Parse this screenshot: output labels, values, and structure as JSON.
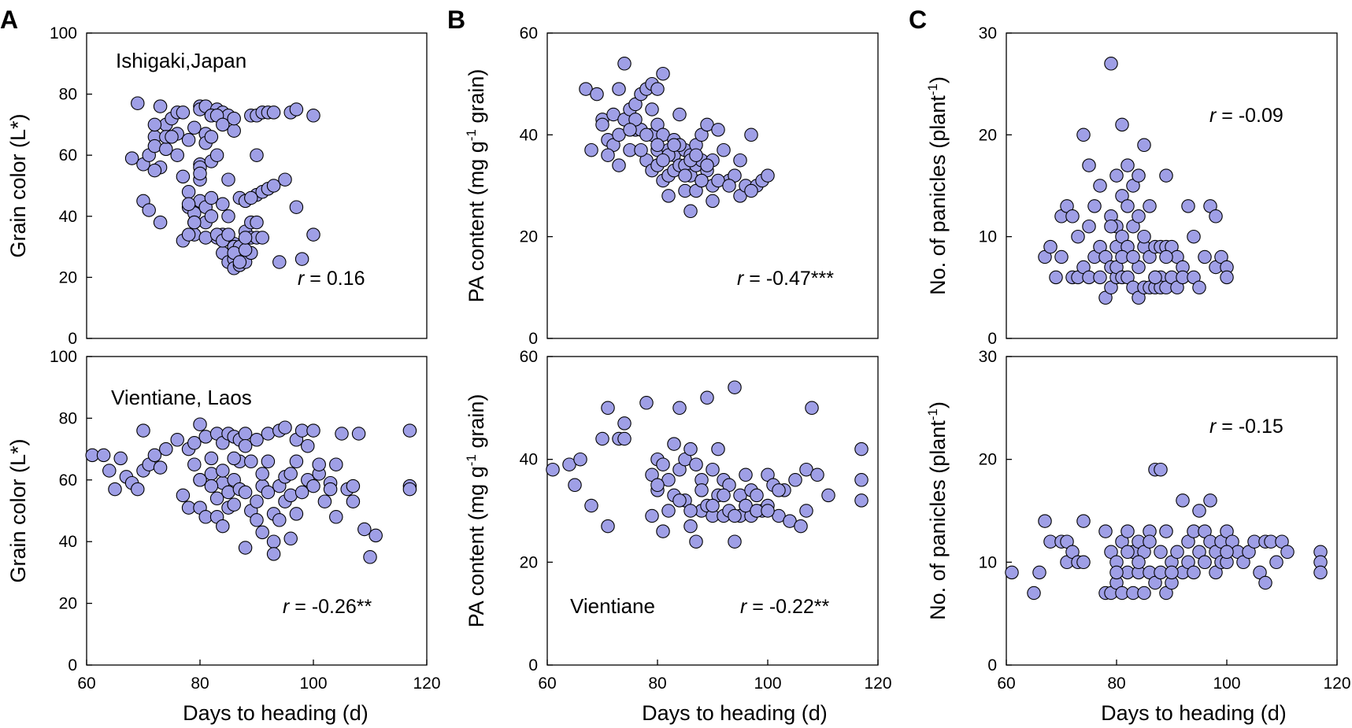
{
  "panel_letters": [
    "A",
    "B",
    "C"
  ],
  "x_axis_label": "Days to heading (d)",
  "colors": {
    "marker_fill": "#9f9fe6",
    "marker_edge": "#000000"
  },
  "chart_data": [
    {
      "type": "scatter",
      "id": "A-top",
      "panel": "A",
      "title": "",
      "annotation": "Ishigaki,Japan",
      "r_label": "r",
      "r_value": " = 0.16",
      "xlabel": "",
      "ylabel": "Grain color (L*)",
      "xlim": [
        60,
        120
      ],
      "ylim": [
        0,
        100
      ],
      "xticks": [],
      "yticks": [
        0,
        20,
        40,
        60,
        80,
        100
      ],
      "x": [
        68,
        69,
        70,
        71,
        72,
        72,
        73,
        73,
        74,
        74,
        75,
        76,
        76,
        77,
        77,
        78,
        78,
        79,
        79,
        79,
        79,
        80,
        80,
        80,
        80,
        80,
        81,
        81,
        81,
        81,
        81,
        82,
        82,
        82,
        82,
        83,
        83,
        83,
        84,
        84,
        84,
        84,
        85,
        85,
        85,
        85,
        86,
        86,
        86,
        86,
        86,
        87,
        87,
        87,
        87,
        88,
        88,
        88,
        88,
        89,
        89,
        89,
        89,
        90,
        90,
        90,
        90,
        91,
        91,
        91,
        92,
        92,
        93,
        93,
        94,
        95,
        96,
        97,
        97,
        98,
        100,
        100,
        70,
        71,
        72,
        73,
        74,
        76,
        77,
        78,
        78,
        79,
        80,
        81,
        82,
        83,
        83,
        84,
        85,
        86,
        87,
        88,
        89,
        90,
        72,
        75,
        78,
        80,
        82,
        84,
        86,
        88
      ],
      "y": [
        59,
        77,
        57,
        60,
        66,
        63,
        76,
        56,
        70,
        62,
        72,
        67,
        74,
        74,
        53,
        48,
        43,
        41,
        38,
        34,
        69,
        76,
        75,
        57,
        52,
        45,
        76,
        67,
        64,
        43,
        38,
        73,
        66,
        58,
        40,
        75,
        60,
        33,
        74,
        44,
        34,
        28,
        73,
        52,
        40,
        25,
        68,
        31,
        30,
        26,
        23,
        46,
        30,
        27,
        24,
        45,
        35,
        27,
        25,
        73,
        38,
        33,
        28,
        73,
        60,
        47,
        33,
        74,
        48,
        33,
        74,
        49,
        74,
        50,
        25,
        52,
        74,
        75,
        43,
        26,
        73,
        34,
        45,
        42,
        55,
        38,
        66,
        60,
        32,
        34,
        65,
        38,
        56,
        33,
        73,
        34,
        73,
        32,
        34,
        28,
        25,
        29,
        46,
        38,
        70,
        66,
        44,
        54,
        46,
        70,
        72,
        33
      ],
      "marker": "circle"
    },
    {
      "type": "scatter",
      "id": "A-bottom",
      "panel": "A",
      "title": "",
      "annotation": "Vientiane, Laos",
      "r_label": "r",
      "r_value": " = -0.26**",
      "xlabel": "Days to heading (d)",
      "ylabel": "Grain color (L*)",
      "xlim": [
        60,
        120
      ],
      "ylim": [
        0,
        100
      ],
      "xticks": [
        60,
        80,
        100,
        120
      ],
      "yticks": [
        0,
        20,
        40,
        60,
        80,
        100
      ],
      "x": [
        61,
        63,
        64,
        65,
        66,
        67,
        68,
        69,
        70,
        70,
        71,
        72,
        73,
        74,
        76,
        77,
        78,
        78,
        79,
        79,
        80,
        80,
        80,
        81,
        81,
        82,
        82,
        83,
        83,
        83,
        84,
        84,
        84,
        85,
        85,
        85,
        86,
        86,
        86,
        87,
        87,
        87,
        88,
        88,
        88,
        89,
        89,
        90,
        90,
        90,
        91,
        91,
        91,
        92,
        92,
        93,
        93,
        93,
        94,
        94,
        94,
        95,
        95,
        95,
        96,
        96,
        97,
        97,
        97,
        98,
        98,
        99,
        99,
        100,
        100,
        101,
        102,
        103,
        103,
        104,
        104,
        105,
        106,
        107,
        107,
        108,
        109,
        110,
        111,
        117,
        117,
        117,
        80,
        82,
        84,
        86,
        88,
        92,
        96,
        101
      ],
      "y": [
        68,
        68,
        63,
        57,
        67,
        61,
        59,
        57,
        63,
        76,
        65,
        68,
        64,
        70,
        73,
        55,
        51,
        70,
        72,
        65,
        78,
        60,
        51,
        74,
        48,
        67,
        62,
        75,
        54,
        48,
        72,
        59,
        45,
        75,
        56,
        51,
        74,
        60,
        52,
        73,
        66,
        57,
        38,
        75,
        56,
        50,
        66,
        53,
        47,
        73,
        58,
        43,
        62,
        75,
        56,
        40,
        36,
        49,
        76,
        58,
        47,
        77,
        61,
        53,
        55,
        41,
        73,
        49,
        66,
        76,
        56,
        71,
        60,
        76,
        58,
        62,
        53,
        59,
        57,
        65,
        48,
        75,
        57,
        53,
        58,
        75,
        44,
        35,
        42,
        76,
        58,
        57,
        60,
        58,
        63,
        67,
        71,
        66,
        62,
        65
      ],
      "marker": "circle"
    },
    {
      "type": "scatter",
      "id": "B-top",
      "panel": "B",
      "title": "",
      "annotation": "",
      "r_label": "r",
      "r_value": " = -0.47***",
      "xlabel": "",
      "ylabel": "PA content (mg g-1 grain)",
      "xlim": [
        60,
        120
      ],
      "ylim": [
        0,
        60
      ],
      "xticks": [],
      "yticks": [
        0,
        20,
        40,
        60
      ],
      "x": [
        67,
        68,
        69,
        70,
        70,
        71,
        72,
        72,
        73,
        73,
        74,
        74,
        75,
        75,
        76,
        76,
        77,
        77,
        78,
        78,
        79,
        79,
        79,
        80,
        80,
        80,
        80,
        81,
        81,
        81,
        82,
        82,
        82,
        83,
        83,
        83,
        84,
        84,
        85,
        85,
        85,
        86,
        86,
        86,
        87,
        87,
        87,
        88,
        88,
        88,
        89,
        89,
        90,
        90,
        90,
        91,
        92,
        93,
        94,
        95,
        96,
        97,
        98,
        99,
        100,
        76,
        78,
        80,
        82,
        84,
        86,
        88,
        71,
        73,
        75,
        77,
        79,
        81,
        83,
        85,
        87,
        89,
        91,
        93,
        95,
        97
      ],
      "y": [
        49,
        37,
        48,
        43,
        42,
        39,
        44,
        38,
        49,
        40,
        54,
        43,
        45,
        37,
        46,
        41,
        48,
        41,
        49,
        35,
        50,
        40,
        33,
        49,
        42,
        37,
        34,
        52,
        40,
        31,
        37,
        32,
        28,
        39,
        36,
        33,
        44,
        34,
        37,
        34,
        29,
        36,
        32,
        25,
        38,
        34,
        29,
        40,
        35,
        31,
        42,
        33,
        35,
        30,
        27,
        41,
        37,
        31,
        32,
        28,
        30,
        40,
        30,
        31,
        32,
        43,
        40,
        38,
        36,
        38,
        35,
        31,
        36,
        34,
        41,
        37,
        45,
        35,
        38,
        32,
        36,
        34,
        31,
        30,
        35,
        29
      ],
      "marker": "circle"
    },
    {
      "type": "scatter",
      "id": "B-bottom",
      "panel": "B",
      "title": "",
      "annotation": "Vientiane",
      "r_label": "r",
      "r_value": " = -0.22**",
      "xlabel": "Days to heading (d)",
      "ylabel": "PA content (mg g-1 grain)",
      "xlim": [
        60,
        120
      ],
      "ylim": [
        0,
        60
      ],
      "xticks": [
        60,
        80,
        100,
        120
      ],
      "yticks": [
        0,
        20,
        40,
        60
      ],
      "x": [
        61,
        64,
        65,
        66,
        68,
        70,
        71,
        71,
        73,
        74,
        74,
        78,
        79,
        79,
        80,
        80,
        81,
        81,
        82,
        82,
        83,
        83,
        84,
        84,
        85,
        85,
        86,
        86,
        87,
        87,
        88,
        88,
        89,
        89,
        90,
        90,
        91,
        91,
        92,
        92,
        93,
        93,
        94,
        94,
        95,
        95,
        96,
        96,
        97,
        97,
        98,
        98,
        99,
        100,
        100,
        101,
        102,
        103,
        104,
        105,
        106,
        107,
        107,
        108,
        109,
        111,
        117,
        117,
        117,
        80,
        84,
        86,
        88,
        90,
        92,
        94,
        96,
        98,
        100,
        102
      ],
      "y": [
        38,
        39,
        35,
        40,
        31,
        44,
        50,
        27,
        44,
        47,
        44,
        51,
        37,
        29,
        40,
        34,
        39,
        26,
        36,
        30,
        43,
        33,
        50,
        38,
        40,
        32,
        42,
        27,
        39,
        24,
        36,
        30,
        52,
        31,
        38,
        29,
        42,
        33,
        36,
        29,
        35,
        30,
        54,
        24,
        33,
        29,
        37,
        31,
        34,
        29,
        33,
        30,
        30,
        37,
        31,
        35,
        29,
        34,
        28,
        36,
        27,
        38,
        30,
        50,
        37,
        33,
        42,
        36,
        32,
        35,
        32,
        30,
        34,
        31,
        33,
        29,
        31,
        30,
        30,
        34
      ],
      "marker": "circle"
    },
    {
      "type": "scatter",
      "id": "C-top",
      "panel": "C",
      "title": "",
      "annotation": "",
      "r_label": "r",
      "r_value": " = -0.09",
      "xlabel": "",
      "ylabel": "No. of panicles (plant-1)",
      "xlim": [
        60,
        120
      ],
      "ylim": [
        0,
        30
      ],
      "xticks": [],
      "yticks": [
        0,
        10,
        20,
        30
      ],
      "x": [
        67,
        68,
        69,
        70,
        70,
        71,
        72,
        72,
        73,
        73,
        74,
        74,
        75,
        75,
        76,
        76,
        77,
        77,
        78,
        78,
        79,
        79,
        79,
        79,
        80,
        80,
        80,
        80,
        80,
        81,
        81,
        81,
        81,
        82,
        82,
        82,
        82,
        83,
        83,
        83,
        84,
        84,
        84,
        84,
        85,
        85,
        85,
        86,
        86,
        86,
        87,
        87,
        87,
        88,
        88,
        88,
        89,
        89,
        89,
        90,
        90,
        91,
        91,
        92,
        92,
        93,
        94,
        94,
        95,
        96,
        97,
        98,
        98,
        99,
        100,
        100,
        75,
        77,
        79,
        81,
        83,
        85,
        87,
        89
      ],
      "y": [
        8,
        9,
        6,
        12,
        8,
        13,
        12,
        6,
        10,
        6,
        20,
        7,
        17,
        6,
        13,
        8,
        15,
        9,
        4,
        8,
        27,
        12,
        7,
        5,
        16,
        11,
        9,
        6,
        7,
        21,
        14,
        10,
        6,
        17,
        13,
        9,
        6,
        15,
        11,
        5,
        16,
        12,
        7,
        4,
        19,
        9,
        5,
        13,
        8,
        5,
        9,
        6,
        5,
        9,
        6,
        5,
        16,
        9,
        5,
        9,
        6,
        8,
        5,
        7,
        6,
        13,
        10,
        6,
        5,
        8,
        13,
        12,
        7,
        8,
        7,
        6,
        11,
        6,
        11,
        8,
        8,
        10,
        6,
        8
      ],
      "marker": "circle"
    },
    {
      "type": "scatter",
      "id": "C-bottom",
      "panel": "C",
      "title": "",
      "annotation": "",
      "r_label": "r",
      "r_value": " = -0.15",
      "xlabel": "Days to heading (d)",
      "ylabel": "No. of panicles (plant-1)",
      "xlim": [
        60,
        120
      ],
      "ylim": [
        0,
        30
      ],
      "xticks": [
        60,
        80,
        100,
        120
      ],
      "yticks": [
        0,
        10,
        20,
        30
      ],
      "x": [
        61,
        65,
        66,
        67,
        68,
        70,
        71,
        71,
        72,
        73,
        74,
        74,
        78,
        78,
        79,
        79,
        80,
        80,
        81,
        81,
        82,
        82,
        83,
        83,
        84,
        84,
        85,
        85,
        86,
        86,
        87,
        87,
        88,
        88,
        89,
        89,
        90,
        90,
        91,
        92,
        92,
        93,
        93,
        94,
        94,
        95,
        95,
        96,
        96,
        97,
        97,
        98,
        98,
        99,
        99,
        100,
        100,
        101,
        102,
        103,
        104,
        105,
        106,
        107,
        107,
        108,
        109,
        110,
        111,
        117,
        117,
        117,
        80,
        82,
        84,
        86,
        88,
        90,
        96,
        100
      ],
      "y": [
        9,
        7,
        9,
        14,
        12,
        12,
        12,
        10,
        11,
        10,
        14,
        10,
        13,
        7,
        11,
        7,
        10,
        8,
        12,
        7,
        13,
        9,
        11,
        7,
        12,
        9,
        11,
        7,
        13,
        9,
        19,
        8,
        19,
        9,
        13,
        7,
        10,
        8,
        11,
        16,
        9,
        12,
        10,
        13,
        9,
        15,
        11,
        13,
        10,
        16,
        12,
        11,
        9,
        12,
        10,
        13,
        10,
        12,
        11,
        10,
        11,
        12,
        9,
        12,
        8,
        12,
        10,
        12,
        11,
        11,
        10,
        9,
        9,
        11,
        10,
        12,
        11,
        9,
        10,
        11
      ],
      "marker": "circle"
    }
  ]
}
